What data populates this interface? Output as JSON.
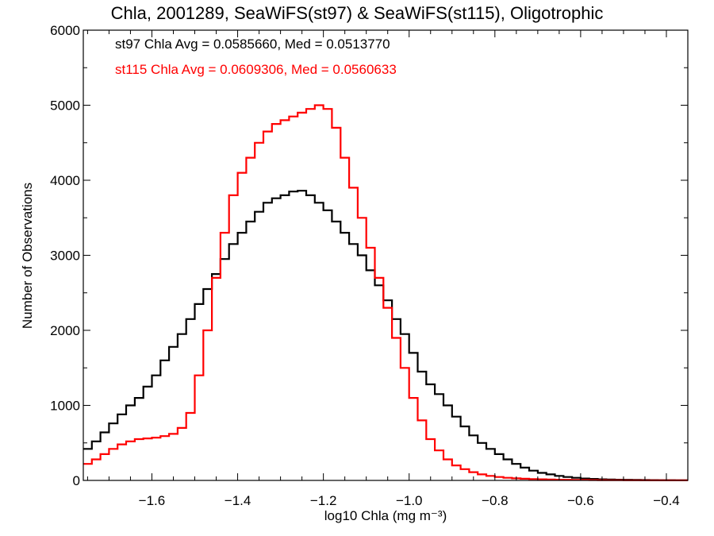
{
  "chart_data": {
    "type": "line",
    "title": "Chla, 2001289, SeaWiFS(st97) & SeaWiFS(st115), Oligotrophic",
    "xlabel": "log10 Chla (mg m⁻³)",
    "ylabel": "Number of Observations",
    "xlim": [
      -1.76,
      -0.35
    ],
    "ylim": [
      0,
      6000
    ],
    "x_ticks": [
      "-1.6",
      "-1.4",
      "-1.2",
      "-1.0",
      "-0.8",
      "-0.6",
      "-0.4"
    ],
    "x_tick_values": [
      -1.6,
      -1.4,
      -1.2,
      -1.0,
      -0.8,
      -0.6,
      -0.4
    ],
    "y_ticks": [
      "0",
      "1000",
      "2000",
      "3000",
      "4000",
      "5000",
      "6000"
    ],
    "y_tick_values": [
      0,
      1000,
      2000,
      3000,
      4000,
      5000,
      6000
    ],
    "step": true,
    "grid": false,
    "annotations": [
      {
        "text": "st97 Chla Avg = 0.0585660, Med = 0.0513770",
        "color": "#000000"
      },
      {
        "text": "st115 Chla Avg = 0.0609306, Med = 0.0560633",
        "color": "#ff0000"
      }
    ],
    "series": [
      {
        "color": "#000000",
        "x": [
          -1.76,
          -1.74,
          -1.72,
          -1.7,
          -1.68,
          -1.66,
          -1.64,
          -1.62,
          -1.6,
          -1.58,
          -1.56,
          -1.54,
          -1.52,
          -1.5,
          -1.48,
          -1.46,
          -1.44,
          -1.42,
          -1.4,
          -1.38,
          -1.36,
          -1.34,
          -1.32,
          -1.3,
          -1.28,
          -1.26,
          -1.24,
          -1.22,
          -1.2,
          -1.18,
          -1.16,
          -1.14,
          -1.12,
          -1.1,
          -1.08,
          -1.06,
          -1.04,
          -1.02,
          -1.0,
          -0.98,
          -0.96,
          -0.94,
          -0.92,
          -0.9,
          -0.88,
          -0.86,
          -0.84,
          -0.82,
          -0.8,
          -0.78,
          -0.76,
          -0.74,
          -0.72,
          -0.7,
          -0.68,
          -0.66,
          -0.64,
          -0.62,
          -0.6,
          -0.58,
          -0.56,
          -0.54,
          -0.52,
          -0.5,
          -0.48,
          -0.46,
          -0.44,
          -0.42,
          -0.4,
          -0.38,
          -0.36
        ],
        "y": [
          420,
          520,
          640,
          760,
          880,
          1000,
          1100,
          1250,
          1400,
          1600,
          1780,
          1950,
          2150,
          2350,
          2550,
          2750,
          2950,
          3150,
          3300,
          3450,
          3580,
          3700,
          3760,
          3800,
          3850,
          3860,
          3800,
          3700,
          3600,
          3450,
          3300,
          3150,
          3000,
          2800,
          2600,
          2400,
          2150,
          1950,
          1700,
          1450,
          1280,
          1150,
          1000,
          850,
          720,
          600,
          500,
          420,
          350,
          280,
          220,
          170,
          130,
          100,
          80,
          60,
          45,
          35,
          25,
          20,
          15,
          12,
          10,
          8,
          6,
          5,
          4,
          3,
          3,
          2,
          2
        ]
      },
      {
        "color": "#ff0000",
        "x": [
          -1.76,
          -1.74,
          -1.72,
          -1.7,
          -1.68,
          -1.66,
          -1.64,
          -1.62,
          -1.6,
          -1.58,
          -1.56,
          -1.54,
          -1.52,
          -1.5,
          -1.48,
          -1.46,
          -1.44,
          -1.42,
          -1.4,
          -1.38,
          -1.36,
          -1.34,
          -1.32,
          -1.3,
          -1.28,
          -1.26,
          -1.24,
          -1.22,
          -1.2,
          -1.18,
          -1.16,
          -1.14,
          -1.12,
          -1.1,
          -1.08,
          -1.06,
          -1.04,
          -1.02,
          -1.0,
          -0.98,
          -0.96,
          -0.94,
          -0.92,
          -0.9,
          -0.88,
          -0.86,
          -0.84,
          -0.82,
          -0.8,
          -0.78,
          -0.76,
          -0.74,
          -0.72,
          -0.7,
          -0.68,
          -0.66,
          -0.64,
          -0.62,
          -0.6,
          -0.58,
          -0.56,
          -0.54,
          -0.52,
          -0.5,
          -0.48,
          -0.46,
          -0.44,
          -0.42,
          -0.4,
          -0.38,
          -0.36
        ],
        "y": [
          220,
          280,
          350,
          420,
          480,
          520,
          550,
          560,
          570,
          590,
          620,
          700,
          900,
          1400,
          2000,
          2700,
          3300,
          3800,
          4100,
          4300,
          4500,
          4650,
          4750,
          4800,
          4850,
          4900,
          4950,
          5000,
          4950,
          4700,
          4300,
          3900,
          3500,
          3100,
          2700,
          2300,
          1900,
          1500,
          1100,
          800,
          550,
          400,
          280,
          200,
          150,
          110,
          80,
          60,
          45,
          35,
          28,
          22,
          18,
          15,
          12,
          10,
          8,
          7,
          6,
          5,
          4,
          3,
          3,
          2,
          2,
          2,
          1,
          1,
          1,
          1,
          1
        ]
      }
    ]
  }
}
